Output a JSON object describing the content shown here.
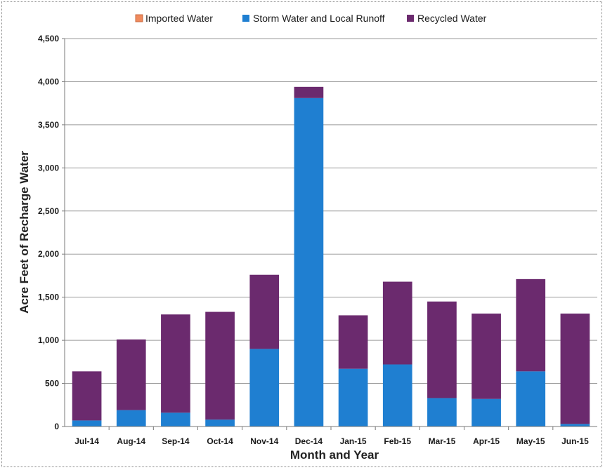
{
  "chart_data": {
    "type": "bar",
    "stacked": true,
    "title": "",
    "xlabel": "Month and Year",
    "ylabel": "Acre Feet of Recharge Water",
    "ylim": [
      0,
      4500
    ],
    "yticks": [
      0,
      500,
      1000,
      1500,
      2000,
      2500,
      3000,
      3500,
      4000,
      4500
    ],
    "ytick_labels": [
      "0",
      "500",
      "1,000",
      "1,500",
      "2,000",
      "2,500",
      "3,000",
      "3,500",
      "4,000",
      "4,500"
    ],
    "grid": true,
    "legend_position": "top",
    "categories": [
      "Jul-14",
      "Aug-14",
      "Sep-14",
      "Oct-14",
      "Nov-14",
      "Dec-14",
      "Jan-15",
      "Feb-15",
      "Mar-15",
      "Apr-15",
      "May-15",
      "Jun-15"
    ],
    "series": [
      {
        "name": "Imported Water",
        "color": "#f08a5d",
        "values": [
          0,
          0,
          0,
          0,
          0,
          0,
          0,
          0,
          0,
          0,
          0,
          0
        ]
      },
      {
        "name": "Storm Water and Local Runoff",
        "color": "#1f7fd1",
        "values": [
          70,
          190,
          160,
          80,
          900,
          3810,
          670,
          720,
          330,
          320,
          640,
          30
        ]
      },
      {
        "name": "Recycled Water",
        "color": "#6b2a6e",
        "values": [
          570,
          820,
          1140,
          1250,
          860,
          130,
          620,
          960,
          1120,
          990,
          1070,
          1280
        ]
      }
    ]
  }
}
